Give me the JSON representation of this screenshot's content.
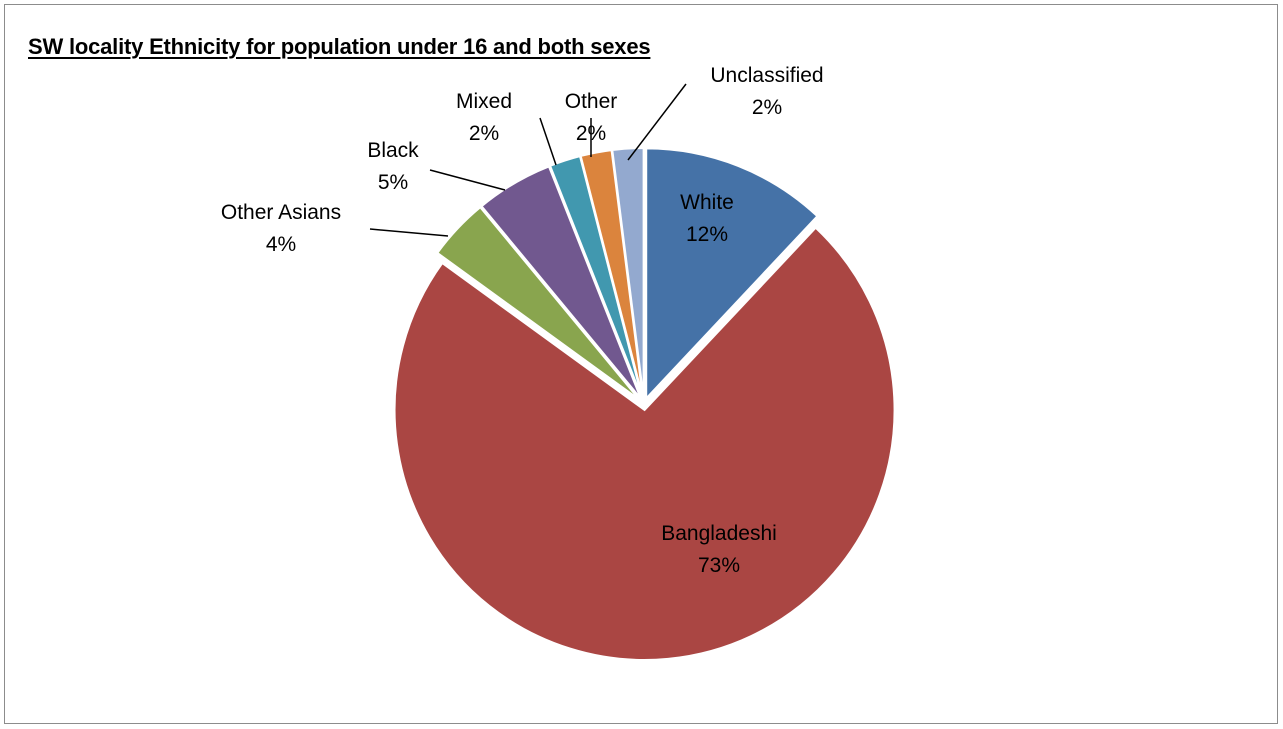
{
  "chart_data": {
    "type": "pie",
    "title": "SW locality Ethnicity for population under 16 and both sexes",
    "slices": [
      {
        "name": "White",
        "value": 12,
        "label": "12%",
        "color": "#4572A7"
      },
      {
        "name": "Bangladeshi",
        "value": 73,
        "label": "73%",
        "color": "#AA4643"
      },
      {
        "name": "Other Asians",
        "value": 4,
        "label": "4%",
        "color": "#89A54E"
      },
      {
        "name": "Black",
        "value": 5,
        "label": "5%",
        "color": "#71588F"
      },
      {
        "name": "Mixed",
        "value": 2,
        "label": "2%",
        "color": "#4198AF"
      },
      {
        "name": "Other",
        "value": 2,
        "label": "2%",
        "color": "#DB843D"
      },
      {
        "name": "Unclassified",
        "value": 2,
        "label": "2%",
        "color": "#93A9CF"
      }
    ],
    "start_angle_deg": 0,
    "direction": "clockwise",
    "exploded": true,
    "legend": "none"
  }
}
